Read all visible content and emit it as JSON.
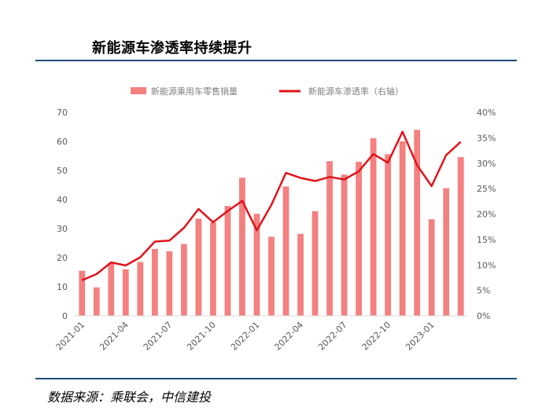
{
  "title": "新能源车渗透率持续提升",
  "source": "数据来源：乘联会，中信建投",
  "colors": {
    "bar": "#f48080",
    "line": "#e0141b",
    "axis": "#d9d9d9",
    "rule": "#1f4e79"
  },
  "chart_data": {
    "type": "bar",
    "legend": {
      "placement": "top",
      "bar_label": "新能源乘用车零售销量",
      "line_label": "新能源车渗透率（右轴）"
    },
    "x": [
      "2021-01",
      "2021-02",
      "2021-03",
      "2021-04",
      "2021-05",
      "2021-06",
      "2021-07",
      "2021-08",
      "2021-09",
      "2021-10",
      "2021-11",
      "2021-12",
      "2022-01",
      "2022-02",
      "2022-03",
      "2022-04",
      "2022-05",
      "2022-06",
      "2022-07",
      "2022-08",
      "2022-09",
      "2022-10",
      "2022-11",
      "2022-12",
      "2023-01",
      "2023-02",
      "2023-03"
    ],
    "x_tick_labels": [
      "2021-01",
      "",
      "",
      "2021-04",
      "",
      "",
      "2021-07",
      "",
      "",
      "2021-10",
      "",
      "",
      "2022-01",
      "",
      "",
      "2022-04",
      "",
      "",
      "2022-07",
      "",
      "",
      "2022-10",
      "",
      "",
      "2023-01",
      "",
      ""
    ],
    "series": [
      {
        "name": "新能源乘用车零售销量",
        "type": "bar",
        "axis": "left",
        "values": [
          15.5,
          9.8,
          18.0,
          16.0,
          18.5,
          23.0,
          22.2,
          24.7,
          33.4,
          32.1,
          37.8,
          47.5,
          35.1,
          27.2,
          44.5,
          28.2,
          36.0,
          53.2,
          48.6,
          53.0,
          61.1,
          55.6,
          60.0,
          64.0,
          33.2,
          43.9,
          54.6
        ]
      },
      {
        "name": "新能源车渗透率（右轴）",
        "type": "line",
        "axis": "right",
        "values": [
          7.0,
          8.2,
          10.5,
          9.9,
          11.5,
          14.6,
          14.8,
          17.3,
          21.0,
          18.4,
          20.6,
          22.6,
          16.8,
          21.8,
          28.1,
          27.1,
          26.5,
          27.3,
          26.8,
          28.4,
          31.8,
          30.1,
          36.2,
          29.6,
          25.5,
          31.6,
          34.2
        ]
      }
    ],
    "ylim_left": [
      0,
      70
    ],
    "yticks_left": [
      "0",
      "10",
      "20",
      "30",
      "40",
      "50",
      "60",
      "70"
    ],
    "ylim_right": [
      0,
      40
    ],
    "yticks_right": [
      "0%",
      "5%",
      "10%",
      "15%",
      "20%",
      "25%",
      "30%",
      "35%",
      "40%"
    ],
    "grid": false
  }
}
